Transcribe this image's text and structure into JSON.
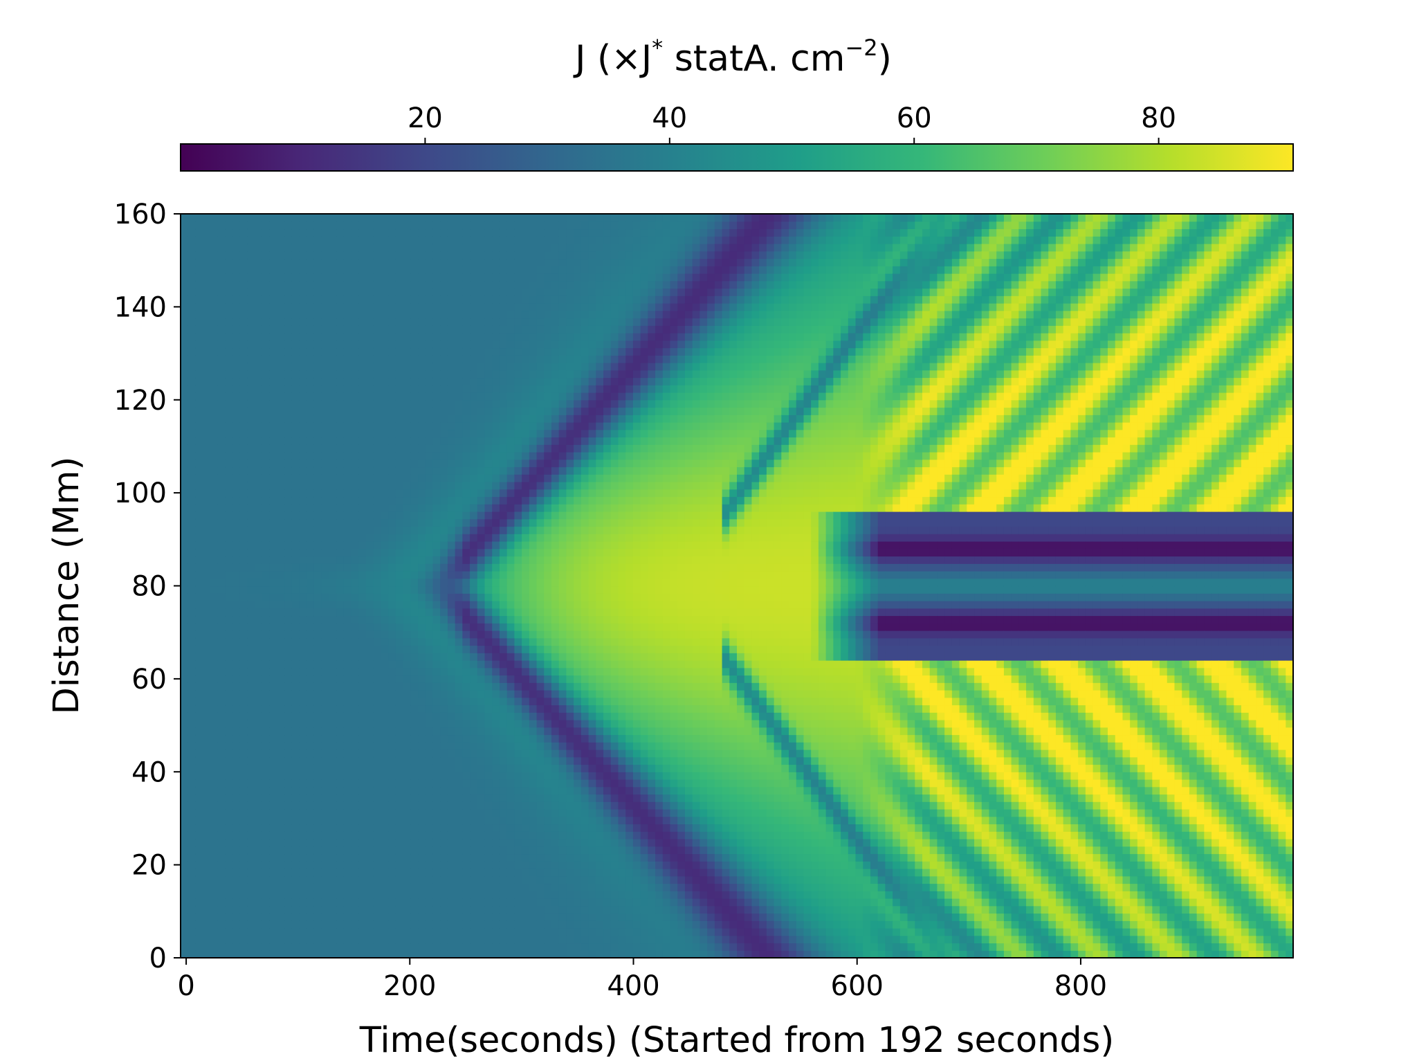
{
  "chart_data": {
    "type": "heatmap",
    "title": "",
    "xlabel": "Time(seconds) (Started from 192 seconds)",
    "ylabel": "Distance (Mm)",
    "xlim": [
      -5,
      990
    ],
    "ylim": [
      0,
      160
    ],
    "x_ticks": [
      0,
      200,
      400,
      600,
      800
    ],
    "y_ticks": [
      0,
      20,
      40,
      60,
      80,
      100,
      120,
      140,
      160
    ],
    "colorbar": {
      "label_parts": [
        "J (×J",
        "*",
        " statA. cm",
        "−2",
        ")"
      ],
      "range": [
        0,
        91
      ],
      "ticks": [
        20,
        40,
        60,
        80
      ],
      "placement": "top",
      "colormap": "viridis"
    },
    "background_value": 35,
    "features": [
      {
        "kind": "central_bright_plume",
        "center_y": 80,
        "peak_value": 84,
        "x_range": [
          200,
          620
        ]
      },
      {
        "kind": "dark_band_upper",
        "from": [
          330,
          100
        ],
        "to": [
          550,
          160
        ],
        "value": 5
      },
      {
        "kind": "dark_band_lower",
        "from": [
          330,
          60
        ],
        "to": [
          550,
          0
        ],
        "value": 5
      },
      {
        "kind": "dark_core_channels",
        "y_values": [
          72,
          88
        ],
        "x_range": [
          560,
          990
        ],
        "value": 3
      },
      {
        "kind": "oscillating_stripes",
        "x_range": [
          600,
          990
        ],
        "value_range": [
          20,
          85
        ]
      }
    ]
  },
  "palette": [
    "#440154",
    "#482878",
    "#3e4989",
    "#31688e",
    "#26828e",
    "#1f9e89",
    "#35b779",
    "#6ece58",
    "#b5de2b",
    "#fde725"
  ]
}
